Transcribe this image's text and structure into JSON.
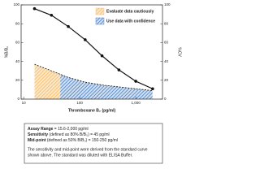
{
  "chart_data": {
    "type": "line",
    "xlabel": "Thromboxane B₂ (pg/ml)",
    "ylabel": "%B/B₀",
    "y2label": "%CV",
    "x": [
      15.6,
      31.3,
      62.5,
      125,
      250,
      500,
      1000,
      2000
    ],
    "series": [
      {
        "color": "#111111",
        "values": [
          96,
          89,
          77,
          63,
          46,
          31,
          19,
          11
        ]
      },
      {
        "color": "#111111",
        "axis": "y2",
        "dashed": true,
        "values": [
          37,
          30,
          23,
          18,
          15,
          13,
          11,
          9
        ]
      }
    ],
    "regions": [
      {
        "name": "Evaluate data cautiously",
        "color": "#f5b45a",
        "xlim": [
          15.6,
          45
        ]
      },
      {
        "name": "Use data with confidence",
        "color": "#3a6fb5",
        "xlim": [
          45,
          2000
        ]
      }
    ],
    "xlog": true,
    "xlim": [
      9,
      3000
    ],
    "xticks": [
      10,
      100,
      {
        "value": 1000,
        "label": "1,000"
      }
    ],
    "ylim": [
      0,
      100
    ],
    "yticks": [
      0,
      20,
      40,
      60,
      80,
      100
    ],
    "y2lim": [
      0,
      100
    ],
    "y2ticks": [
      0,
      20,
      40,
      60,
      80,
      100
    ]
  },
  "info_box": {
    "lines": [
      {
        "label": "Assay Range",
        "text": " = 15.6-2,000 pg/ml"
      },
      {
        "label": "Sensitivity",
        "text": " (defined as 80% B/B₀) = 45 pg/ml"
      },
      {
        "label": "Mid-point",
        "text": " (defined as 50% B/B₀) = 150-250 pg/ml"
      }
    ],
    "note": [
      "The sensitivity and mid-point were derived from the standard curve",
      "shown above. The standard was diluted with ELISA Buffer."
    ]
  }
}
